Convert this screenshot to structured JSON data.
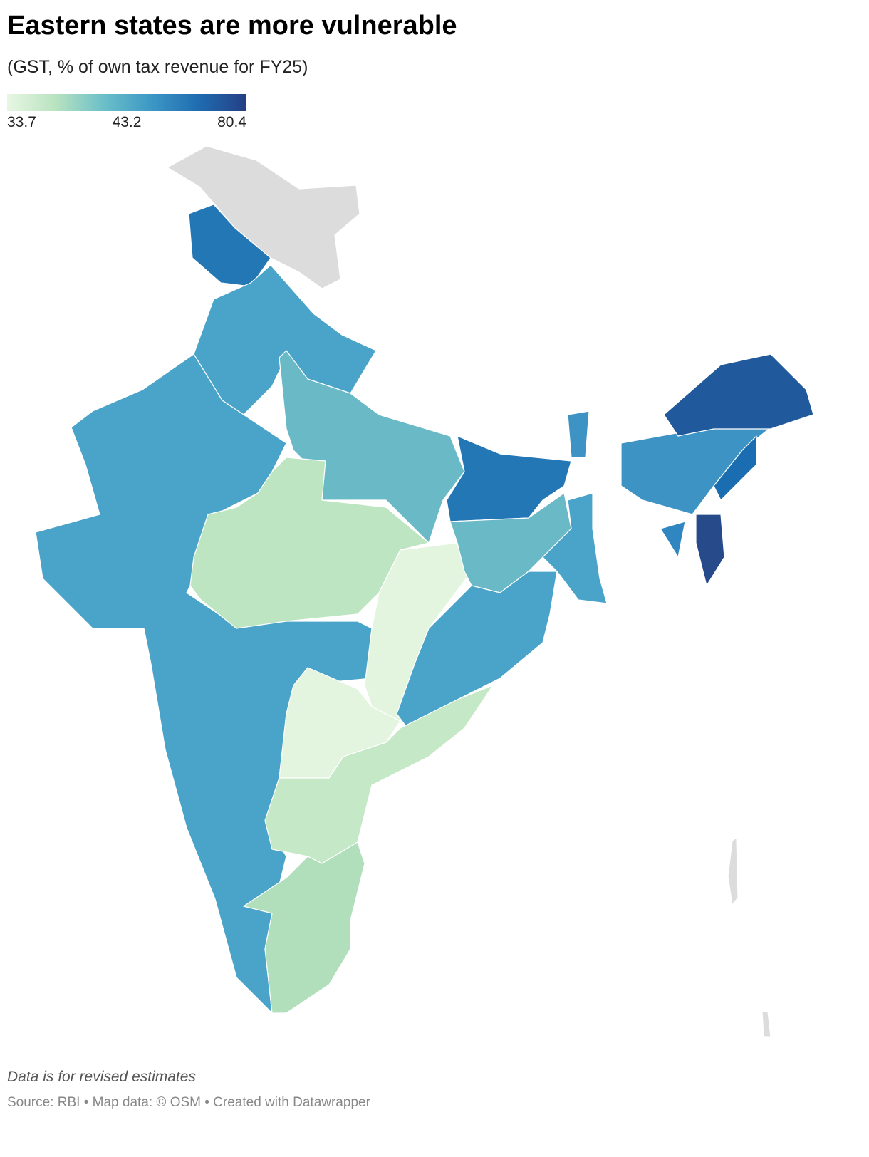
{
  "title": "Eastern states are more vulnerable",
  "subtitle": "(GST, % of own tax revenue for FY25)",
  "legend": {
    "colors": [
      "#e8f6e3",
      "#b9e3c0",
      "#6cc0c8",
      "#3d98c6",
      "#1f6cb0",
      "#253f85"
    ],
    "ticks": [
      33.7,
      43.2,
      80.4
    ]
  },
  "note": "Data is for revised estimates",
  "source": "Source: RBI • Map data: © OSM  • Created with Datawrapper"
}
